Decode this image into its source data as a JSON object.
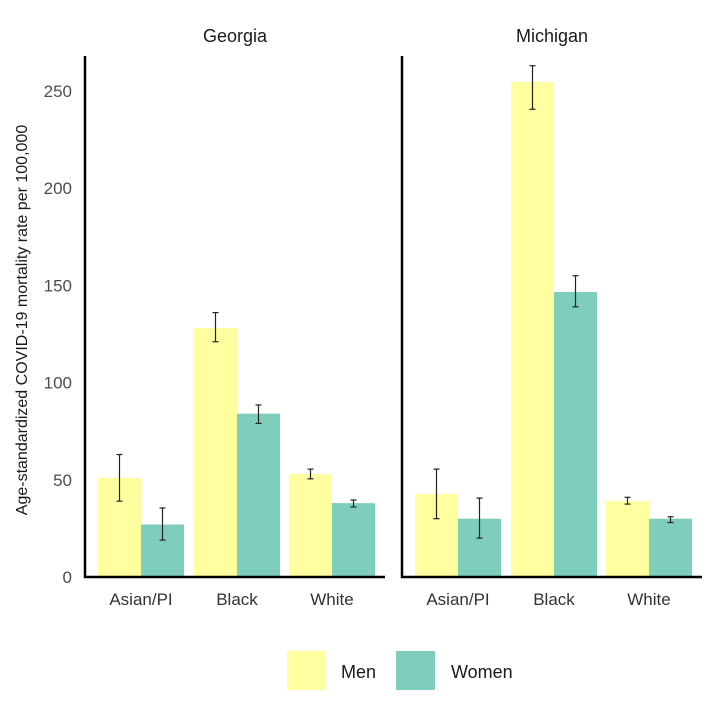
{
  "chart_data": {
    "type": "bar",
    "ylabel": "Age-standardized COVID-19 mortality rate per 100,000",
    "ylim": [
      0,
      265
    ],
    "yticks": [
      0,
      50,
      100,
      150,
      200,
      250
    ],
    "ytick_labels": [
      "0",
      "50",
      "100",
      "150",
      "200",
      "250"
    ],
    "categories": [
      "Asian/PI",
      "Black",
      "White"
    ],
    "legend": {
      "position": "bottom",
      "entries": [
        "Men",
        "Women"
      ]
    },
    "colors": {
      "Men": "#ffff9f",
      "Women": "#7fcdbb"
    },
    "panels": [
      {
        "title": "Georgia",
        "series": [
          {
            "name": "Men",
            "values": [
              51,
              128,
              53
            ],
            "err_low": [
              39,
              121,
              50.5
            ],
            "err_high": [
              63,
              136,
              55.5
            ]
          },
          {
            "name": "Women",
            "values": [
              27,
              84,
              38
            ],
            "err_low": [
              19,
              79,
              36
            ],
            "err_high": [
              35.5,
              88.5,
              39.6
            ]
          }
        ]
      },
      {
        "title": "Michigan",
        "series": [
          {
            "name": "Men",
            "values": [
              42.7,
              254.6,
              39
            ],
            "err_low": [
              30,
              240.6,
              37.5
            ],
            "err_high": [
              55.5,
              263,
              41
            ]
          },
          {
            "name": "Women",
            "values": [
              30,
              146.6,
              30
            ],
            "err_low": [
              20,
              139,
              28
            ],
            "err_high": [
              40.6,
              155,
              31
            ]
          }
        ]
      }
    ]
  }
}
